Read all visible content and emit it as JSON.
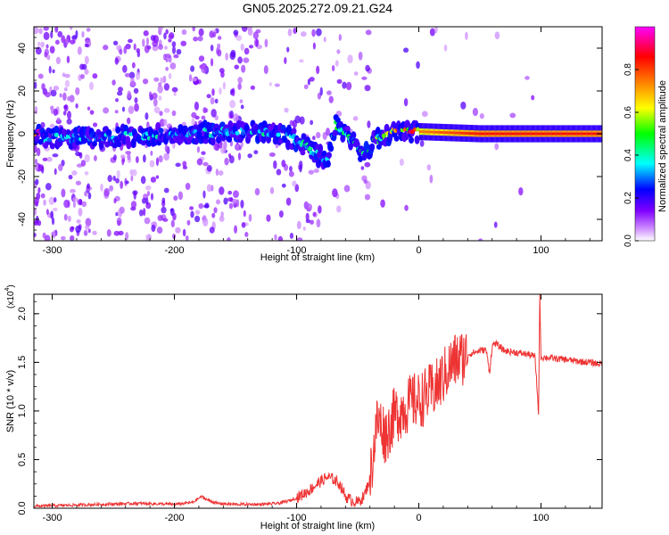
{
  "figure_title": "GN05.2025.272.09.21.G24",
  "chart_data": [
    {
      "type": "heatmap",
      "title": "GN05.2025.272.09.21.G24",
      "xlabel": "Height of straight line (km)",
      "ylabel": "Frequency (Hz)",
      "xlim": [
        -315,
        150
      ],
      "ylim": [
        -50,
        50
      ],
      "x_ticks": [
        -300,
        -200,
        -100,
        0,
        100
      ],
      "y_ticks": [
        -40,
        -20,
        0,
        20,
        40
      ],
      "x_tick_labels": [
        "-300",
        "-200",
        "-100",
        "0",
        "100"
      ],
      "y_tick_labels": [
        "-40",
        "-20",
        "0",
        "20",
        "40"
      ],
      "colorbar": {
        "label": "Normalized spectral amplitude",
        "range": [
          0,
          1
        ],
        "ticks": [
          0.0,
          0.2,
          0.4,
          0.6,
          0.8
        ],
        "tick_labels": [
          "0.0",
          "0.2",
          "0.4",
          "0.6",
          "0.8"
        ],
        "colors": [
          "#ffffff",
          "#cc88ff",
          "#8000ff",
          "#0000ff",
          "#00ffff",
          "#00ff00",
          "#ffff00",
          "#ff8000",
          "#ff0000",
          "#ff00ff"
        ]
      },
      "signal_track": [
        {
          "x": -310,
          "freq": -2,
          "amp": 0.3
        },
        {
          "x": -260,
          "freq": -2,
          "amp": 0.3
        },
        {
          "x": -200,
          "freq": 0,
          "amp": 0.33
        },
        {
          "x": -150,
          "freq": 1,
          "amp": 0.32
        },
        {
          "x": -120,
          "freq": 1,
          "amp": 0.35
        },
        {
          "x": -100,
          "freq": -3,
          "amp": 0.35
        },
        {
          "x": -85,
          "freq": -9,
          "amp": 0.4
        },
        {
          "x": -75,
          "freq": -12,
          "amp": 0.35
        },
        {
          "x": -68,
          "freq": 4,
          "amp": 0.4
        },
        {
          "x": -55,
          "freq": -3,
          "amp": 0.4
        },
        {
          "x": -45,
          "freq": -10,
          "amp": 0.4
        },
        {
          "x": -35,
          "freq": -3,
          "amp": 0.45
        },
        {
          "x": -20,
          "freq": 1,
          "amp": 0.6
        },
        {
          "x": 0,
          "freq": 1,
          "amp": 0.75
        },
        {
          "x": 50,
          "freq": 0,
          "amp": 0.85
        },
        {
          "x": 100,
          "freq": 0,
          "amp": 0.85
        },
        {
          "x": 150,
          "freq": 0,
          "amp": 0.85
        }
      ]
    },
    {
      "type": "line",
      "xlabel": "Height of straight line (km)",
      "ylabel": "SNR (10 * v/v)",
      "y_scale_label": "(x10",
      "y_scale_exponent": "4",
      "xlim": [
        -315,
        150
      ],
      "ylim": [
        0,
        2.2
      ],
      "x_ticks": [
        -300,
        -200,
        -100,
        0,
        100
      ],
      "y_ticks": [
        0.0,
        0.5,
        1.0,
        1.5,
        2.0
      ],
      "x_tick_labels": [
        "-300",
        "-200",
        "-100",
        "0",
        "100"
      ],
      "y_tick_labels": [
        "0.0",
        "0.5",
        "1.0",
        "1.5",
        "2.0"
      ],
      "line_color": "#ee3333",
      "series": [
        {
          "name": "SNR",
          "x": [
            -315,
            -290,
            -260,
            -230,
            -200,
            -185,
            -178,
            -172,
            -165,
            -150,
            -130,
            -115,
            -105,
            -98,
            -90,
            -80,
            -75,
            -70,
            -65,
            -62,
            -60,
            -55,
            -50,
            -45,
            -40,
            -37,
            -34,
            -30,
            -28,
            -25,
            -22,
            -20,
            -15,
            -10,
            -5,
            0,
            5,
            10,
            15,
            20,
            25,
            30,
            40,
            50,
            55,
            58,
            60,
            62,
            70,
            80,
            90,
            95,
            97,
            98,
            99,
            100,
            105,
            110,
            120,
            130,
            140,
            150
          ],
          "y": [
            0.02,
            0.03,
            0.04,
            0.05,
            0.04,
            0.06,
            0.12,
            0.08,
            0.05,
            0.04,
            0.04,
            0.05,
            0.08,
            0.12,
            0.18,
            0.28,
            0.32,
            0.3,
            0.25,
            0.18,
            0.12,
            0.08,
            0.06,
            0.12,
            0.3,
            0.6,
            0.9,
            0.85,
            0.75,
            0.8,
            0.9,
            0.95,
            1.0,
            1.05,
            1.1,
            1.1,
            1.15,
            1.2,
            1.25,
            1.35,
            1.45,
            1.52,
            1.58,
            1.62,
            1.63,
            1.4,
            1.66,
            1.7,
            1.62,
            1.6,
            1.58,
            1.56,
            1.2,
            0.95,
            2.2,
            1.55,
            1.55,
            1.54,
            1.53,
            1.51,
            1.5,
            1.48
          ]
        }
      ]
    }
  ]
}
